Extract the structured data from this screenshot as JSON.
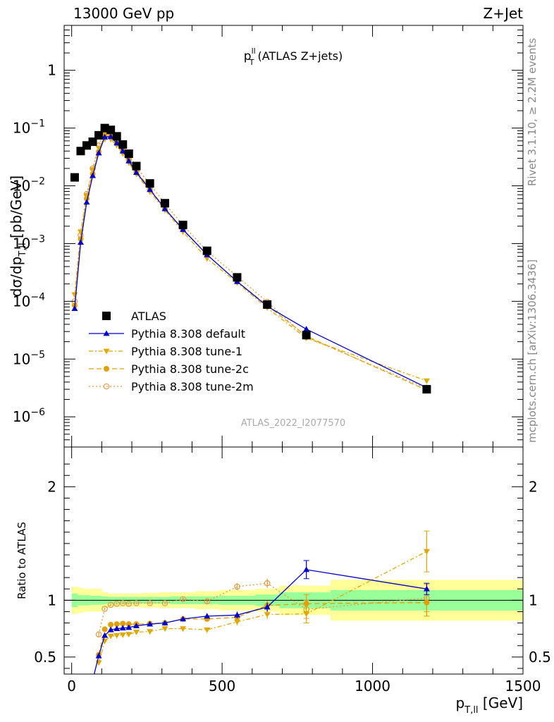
{
  "header": {
    "left": "13000 GeV pp",
    "right": "Z+Jet"
  },
  "side_labels": {
    "top": "Rivet 3.1.10, ≥ 2.2M events",
    "bottom": "mcplots.cern.ch [arXiv:1306.3436]"
  },
  "watermark": "ATLAS_2022_I2077570",
  "colors": {
    "data": "#000000",
    "default": "#0000cc",
    "tune1": "#e0a800",
    "tune2c": "#e39f00",
    "tune2m": "#e09a3f",
    "band_inner": "#99ff99",
    "band_outer": "#ffff99"
  },
  "chart_data": [
    {
      "type": "scatter",
      "title_main": "p",
      "title_sup": "ll",
      "title_sub": "T",
      "title_rest": " (ATLAS Z+jets)",
      "ylabel": "dσ/dp",
      "ylabel_sub": "T,ll",
      "ylabel_unit": " [pb/GeV]",
      "xlim": [
        -25,
        1500
      ],
      "ylim": [
        3e-07,
        6
      ],
      "yscale": "log",
      "ytick_labels": [
        {
          "v": 1,
          "base": "1",
          "exp": ""
        },
        {
          "v": 0.1,
          "base": "10",
          "exp": "−1"
        },
        {
          "v": 0.01,
          "base": "10",
          "exp": "−2"
        },
        {
          "v": 0.001,
          "base": "10",
          "exp": "−3"
        },
        {
          "v": 0.0001,
          "base": "10",
          "exp": "−4"
        },
        {
          "v": 1e-05,
          "base": "10",
          "exp": "−5"
        },
        {
          "v": 1e-06,
          "base": "10",
          "exp": "−6"
        }
      ],
      "legend_placement": "lower-left",
      "series": [
        {
          "name": "ATLAS",
          "style": "data",
          "x": [
            10,
            30,
            50,
            70,
            90,
            110,
            130,
            150,
            170,
            190,
            215,
            260,
            310,
            370,
            450,
            550,
            650,
            780,
            1180
          ],
          "y": [
            0.014,
            0.04,
            0.05,
            0.058,
            0.075,
            0.1,
            0.093,
            0.072,
            0.052,
            0.036,
            0.022,
            0.011,
            0.005,
            0.0021,
            0.00075,
            0.00026,
            8.8e-05,
            2.6e-05,
            3e-06
          ]
        },
        {
          "name": "Pythia 8.308 default",
          "style": "default",
          "x": [
            10,
            30,
            50,
            70,
            90,
            110,
            130,
            150,
            170,
            190,
            215,
            260,
            310,
            370,
            450,
            550,
            650,
            780,
            1180
          ],
          "y": [
            7.5e-05,
            0.00105,
            0.0052,
            0.015,
            0.037,
            0.07,
            0.071,
            0.055,
            0.04,
            0.027,
            0.017,
            0.0086,
            0.004,
            0.00175,
            0.00064,
            0.00022,
            8.2e-05,
            3.3e-05,
            3.2e-06
          ]
        },
        {
          "name": "Pythia 8.308 tune-1",
          "style": "tune1",
          "x": [
            10,
            30,
            50,
            70,
            90,
            110,
            130,
            150,
            170,
            190,
            215,
            260,
            310,
            370,
            450,
            550,
            650,
            780,
            1180
          ],
          "y": [
            0.00013,
            0.0016,
            0.0068,
            0.019,
            0.045,
            0.064,
            0.064,
            0.05,
            0.036,
            0.025,
            0.016,
            0.0079,
            0.0038,
            0.0016,
            0.00055,
            0.00021,
            7.7e-05,
            2.3e-05,
            4.2e-06
          ]
        },
        {
          "name": "Pythia 8.308 tune-2c",
          "style": "tune2c",
          "x": [
            10,
            30,
            50,
            70,
            90,
            110,
            130,
            150,
            170,
            190,
            215,
            260,
            310,
            370,
            450,
            550,
            650,
            780,
            1180
          ],
          "y": [
            8.5e-05,
            0.0012,
            0.006,
            0.016,
            0.039,
            0.075,
            0.074,
            0.057,
            0.041,
            0.028,
            0.018,
            0.0089,
            0.004,
            0.00175,
            0.00064,
            0.00022,
            8.5e-05,
            2.5e-05,
            2.9e-06
          ]
        },
        {
          "name": "Pythia 8.308 tune-2m",
          "style": "tune2m",
          "x": [
            10,
            30,
            50,
            70,
            90,
            110,
            130,
            150,
            170,
            190,
            215,
            260,
            310,
            370,
            450,
            550,
            650,
            780,
            1180
          ],
          "y": [
            0.0001,
            0.0014,
            0.0072,
            0.02,
            0.05,
            0.092,
            0.09,
            0.07,
            0.05,
            0.035,
            0.021,
            0.0107,
            0.0049,
            0.0021,
            0.00074,
            0.00027,
            9.8e-05,
            2.4e-05,
            3.1e-06
          ]
        }
      ]
    },
    {
      "type": "line",
      "ylabel": "Ratio to ATLAS",
      "xlabel": "p",
      "xlabel_sub": "T,ll",
      "xlabel_unit": " [GeV]",
      "xlim": [
        -25,
        1500
      ],
      "ylim": [
        0.35,
        2.35
      ],
      "xtick_labels": [
        0,
        500,
        1000,
        1500
      ],
      "ytick_labels": [
        0.5,
        1,
        2
      ],
      "bands": [
        {
          "xlo": [
            0,
            20,
            40,
            60,
            80,
            100,
            120,
            140,
            160,
            180,
            200,
            230,
            290,
            330,
            410,
            490,
            610,
            690,
            860
          ],
          "xhi": [
            20,
            40,
            60,
            80,
            100,
            120,
            140,
            160,
            180,
            200,
            230,
            290,
            330,
            410,
            490,
            610,
            690,
            860,
            1500
          ],
          "inner": [
            0.06,
            0.045,
            0.045,
            0.04,
            0.04,
            0.035,
            0.03,
            0.03,
            0.03,
            0.03,
            0.03,
            0.03,
            0.03,
            0.035,
            0.035,
            0.04,
            0.05,
            0.07,
            0.09
          ],
          "outer": [
            0.12,
            0.11,
            0.1,
            0.1,
            0.1,
            0.07,
            0.06,
            0.06,
            0.06,
            0.06,
            0.06,
            0.065,
            0.07,
            0.07,
            0.08,
            0.09,
            0.1,
            0.13,
            0.18
          ]
        }
      ],
      "series": [
        {
          "name": "Pythia 8.308 default",
          "style": "default",
          "x": [
            70,
            90,
            110,
            130,
            150,
            170,
            190,
            215,
            260,
            310,
            370,
            450,
            550,
            650,
            780,
            1180
          ],
          "y": [
            0.3,
            0.51,
            0.69,
            0.74,
            0.75,
            0.755,
            0.76,
            0.775,
            0.79,
            0.8,
            0.835,
            0.86,
            0.87,
            0.94,
            1.27,
            1.1
          ],
          "err": [
            0,
            0.02,
            0.01,
            0.01,
            0.01,
            0.01,
            0.01,
            0.01,
            0.01,
            0.01,
            0.015,
            0.02,
            0.03,
            0.04,
            0.08,
            0.05
          ]
        },
        {
          "name": "Pythia 8.308 tune-1",
          "style": "tune1",
          "x": [
            90,
            110,
            130,
            150,
            170,
            190,
            215,
            260,
            310,
            370,
            450,
            550,
            650,
            780,
            1180
          ],
          "y": [
            0.45,
            0.64,
            0.685,
            0.69,
            0.695,
            0.7,
            0.72,
            0.725,
            0.75,
            0.75,
            0.74,
            0.81,
            0.875,
            0.88,
            1.43
          ],
          "err": [
            0.02,
            0.01,
            0.01,
            0.01,
            0.01,
            0.01,
            0.01,
            0.01,
            0.01,
            0.015,
            0.02,
            0.03,
            0.04,
            0.08,
            0.18
          ]
        },
        {
          "name": "Pythia 8.308 tune-2c",
          "style": "tune2c",
          "x": [
            90,
            110,
            130,
            150,
            170,
            190,
            215,
            260,
            310,
            370,
            450,
            550,
            650,
            780,
            1180
          ],
          "y": [
            0.52,
            0.745,
            0.785,
            0.79,
            0.795,
            0.79,
            0.79,
            0.795,
            0.8,
            0.835,
            0.835,
            0.85,
            0.955,
            0.97,
            0.98
          ],
          "err": [
            0.02,
            0.01,
            0.01,
            0.01,
            0.01,
            0.01,
            0.01,
            0.01,
            0.01,
            0.015,
            0.02,
            0.03,
            0.04,
            0.08,
            0.12
          ]
        },
        {
          "name": "Pythia 8.308 tune-2m",
          "style": "tune2m",
          "x": [
            90,
            110,
            130,
            150,
            170,
            190,
            215,
            260,
            310,
            370,
            450,
            550,
            650,
            780,
            1180
          ],
          "y": [
            0.7,
            0.925,
            0.96,
            0.97,
            0.975,
            0.97,
            0.975,
            0.975,
            0.975,
            1.01,
            0.99,
            1.12,
            1.15,
            0.92,
            1.02
          ],
          "err": [
            0.02,
            0.01,
            0.01,
            0.01,
            0.01,
            0.01,
            0.01,
            0.01,
            0.01,
            0.015,
            0.02,
            0.03,
            0.04,
            0.08,
            0.12
          ]
        }
      ]
    }
  ]
}
